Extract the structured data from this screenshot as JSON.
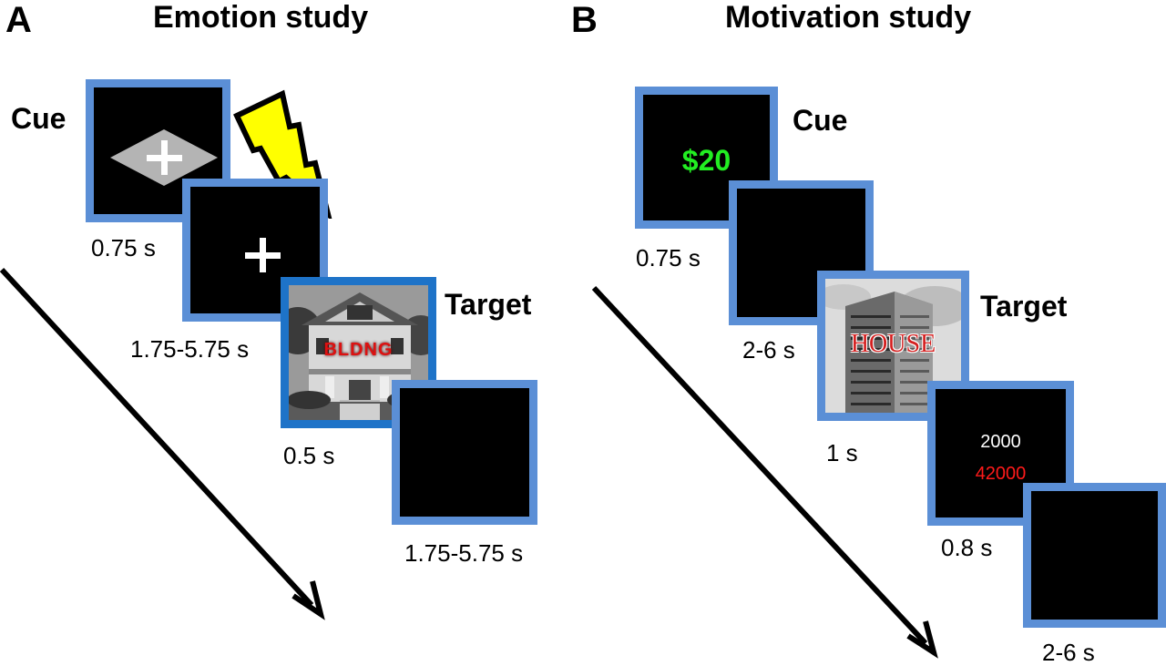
{
  "panelA": {
    "letter": "A",
    "title": "Emotion study",
    "cue_label": "Cue",
    "target_label": "Target",
    "durations": [
      "0.75 s",
      "1.75-5.75 s",
      "0.5 s",
      "1.75-5.75 s"
    ],
    "target_word": "BLDNG",
    "icons": [
      "diamond-fixation-icon",
      "lightning-bolt-icon",
      "fixation-cross-icon",
      "house-photo"
    ]
  },
  "panelB": {
    "letter": "B",
    "title": "Motivation study",
    "cue_label": "Cue",
    "target_label": "Target",
    "cue_value": "$20",
    "target_word": "HOUSE",
    "feedback_top": "2000",
    "feedback_bottom": "42000",
    "durations": [
      "0.75 s",
      "2-6 s",
      "1 s",
      "0.8 s",
      "2-6 s"
    ],
    "icons": [
      "building-photo"
    ]
  },
  "colors": {
    "frame": "#5b8fd6",
    "frame_target": "#1e73c8",
    "cue_green": "#22ee22",
    "feedback_red": "#ff1a1a",
    "bolt_yellow": "#ffff00",
    "diamond_gray": "#b4b4b4"
  }
}
